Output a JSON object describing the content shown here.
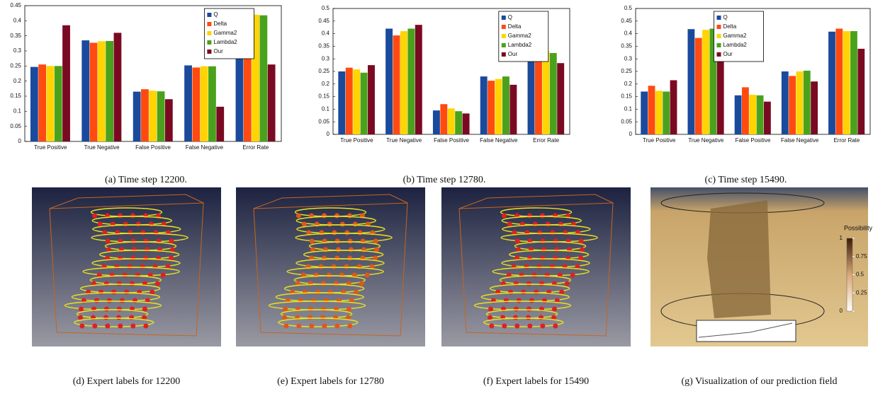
{
  "chart_data": [
    {
      "type": "bar",
      "caption": "(a) Time step 12200.",
      "categories": [
        "True Positive",
        "True Negative",
        "False Positive",
        "False Negative",
        "Error Rate"
      ],
      "series": [
        {
          "name": "Q",
          "color": "#1a4a9c",
          "values": [
            0.247,
            0.335,
            0.165,
            0.252,
            0.42
          ]
        },
        {
          "name": "Delta",
          "color": "#ff4a10",
          "values": [
            0.255,
            0.327,
            0.173,
            0.245,
            0.418
          ]
        },
        {
          "name": "Gamma2",
          "color": "#ffd400",
          "values": [
            0.25,
            0.332,
            0.168,
            0.249,
            0.42
          ]
        },
        {
          "name": "Lambda2",
          "color": "#4aa21c",
          "values": [
            0.25,
            0.333,
            0.166,
            0.249,
            0.418
          ]
        },
        {
          "name": "Our",
          "color": "#7a0a22",
          "values": [
            0.385,
            0.36,
            0.14,
            0.115,
            0.255
          ]
        }
      ],
      "ylim": [
        0,
        0.45
      ],
      "yticks": [
        0,
        0.05,
        0.1,
        0.15,
        0.2,
        0.25,
        0.3,
        0.35,
        0.4,
        0.45
      ],
      "legend": "upper right"
    },
    {
      "type": "bar",
      "caption": "(b) Time step 12780.",
      "categories": [
        "True Positive",
        "True Negative",
        "False Positive",
        "False Negative",
        "Error Rate"
      ],
      "series": [
        {
          "name": "Q",
          "color": "#1a4a9c",
          "values": [
            0.25,
            0.42,
            0.095,
            0.23,
            0.325
          ]
        },
        {
          "name": "Delta",
          "color": "#ff4a10",
          "values": [
            0.265,
            0.393,
            0.12,
            0.213,
            0.337
          ]
        },
        {
          "name": "Gamma2",
          "color": "#ffd400",
          "values": [
            0.258,
            0.41,
            0.103,
            0.22,
            0.33
          ]
        },
        {
          "name": "Lambda2",
          "color": "#4aa21c",
          "values": [
            0.245,
            0.42,
            0.092,
            0.23,
            0.323
          ]
        },
        {
          "name": "Our",
          "color": "#7a0a22",
          "values": [
            0.275,
            0.435,
            0.083,
            0.197,
            0.283
          ]
        }
      ],
      "ylim": [
        0,
        0.5
      ],
      "yticks": [
        0,
        0.05,
        0.1,
        0.15,
        0.2,
        0.25,
        0.3,
        0.35,
        0.4,
        0.45,
        0.5
      ],
      "legend": "upper right"
    },
    {
      "type": "bar",
      "caption": "(c) Time step 15490.",
      "categories": [
        "True Positive",
        "True Negative",
        "False Positive",
        "False Negative",
        "Error Rate"
      ],
      "series": [
        {
          "name": "Q",
          "color": "#1a4a9c",
          "values": [
            0.17,
            0.418,
            0.155,
            0.25,
            0.408
          ]
        },
        {
          "name": "Delta",
          "color": "#ff4a10",
          "values": [
            0.193,
            0.383,
            0.187,
            0.232,
            0.42
          ]
        },
        {
          "name": "Gamma2",
          "color": "#ffd400",
          "values": [
            0.173,
            0.415,
            0.157,
            0.25,
            0.41
          ]
        },
        {
          "name": "Lambda2",
          "color": "#4aa21c",
          "values": [
            0.17,
            0.42,
            0.155,
            0.253,
            0.41
          ]
        },
        {
          "name": "Our",
          "color": "#7a0a22",
          "values": [
            0.215,
            0.44,
            0.13,
            0.21,
            0.34
          ]
        }
      ],
      "ylim": [
        0,
        0.5
      ],
      "yticks": [
        0,
        0.05,
        0.1,
        0.15,
        0.2,
        0.25,
        0.3,
        0.35,
        0.4,
        0.45,
        0.5
      ],
      "legend": "upper center"
    }
  ],
  "figures": [
    {
      "caption": "(d) Expert labels for 12200"
    },
    {
      "caption": "(e) Expert labels for 12780"
    },
    {
      "caption": "(f) Expert labels for 15490"
    },
    {
      "caption": "(g) Visualization of our prediction field",
      "colorbar": {
        "title": "Possibility",
        "ticks": [
          1,
          0.75,
          0.5,
          0.25,
          0
        ]
      }
    }
  ]
}
